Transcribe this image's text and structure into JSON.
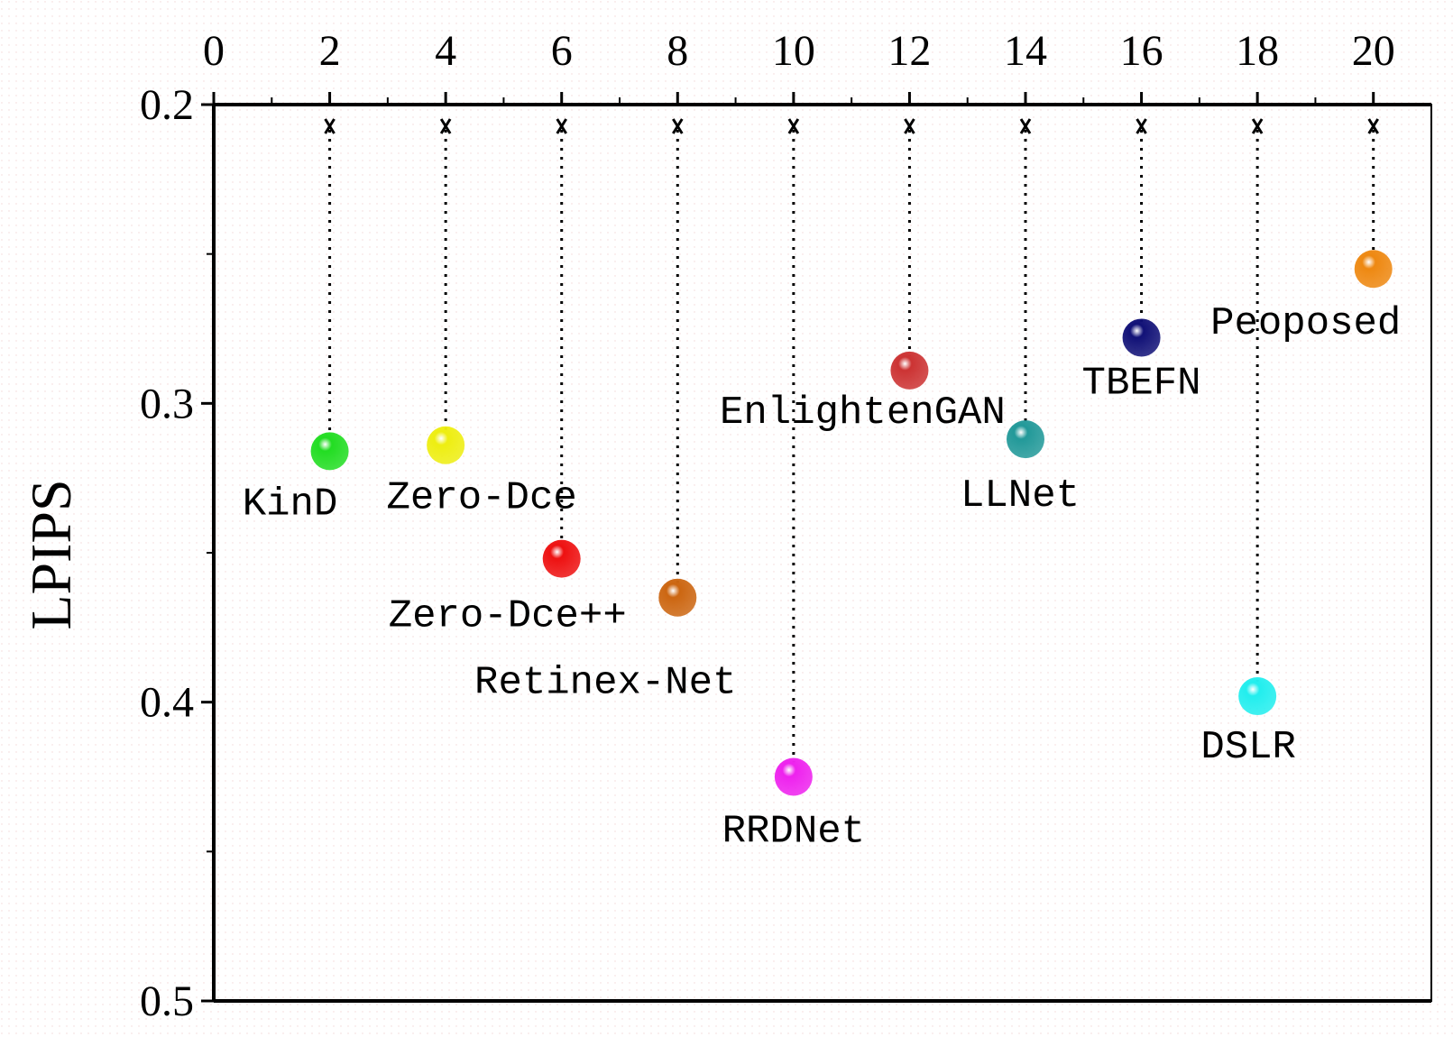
{
  "chart_data": {
    "type": "scatter",
    "y_label": "LPIPS",
    "x": [
      2,
      4,
      6,
      8,
      10,
      12,
      14,
      16,
      18,
      20
    ],
    "values": [
      0.316,
      0.314,
      0.352,
      0.365,
      0.425,
      0.289,
      0.312,
      0.278,
      0.398,
      0.255
    ],
    "labels": [
      "KinD",
      "Zero-Dce",
      "Zero-Dce++",
      "Retinex-Net",
      "RRDNet",
      "EnlightenGAN",
      "LLNet",
      "TBEFN",
      "DSLR",
      "Peoposed"
    ],
    "colors": [
      "#22dd22",
      "#eeee11",
      "#ee1111",
      "#cc6611",
      "#ee22ee",
      "#cc3333",
      "#229999",
      "#111177",
      "#22eeee",
      "#ee8811"
    ],
    "xlim": [
      0,
      21
    ],
    "xticks": [
      0,
      2,
      4,
      6,
      8,
      10,
      12,
      14,
      16,
      18,
      20
    ],
    "ylim": [
      0.2,
      0.5
    ],
    "yticks": [
      0.2,
      0.3,
      0.4,
      0.5
    ],
    "y_inverted": true
  }
}
